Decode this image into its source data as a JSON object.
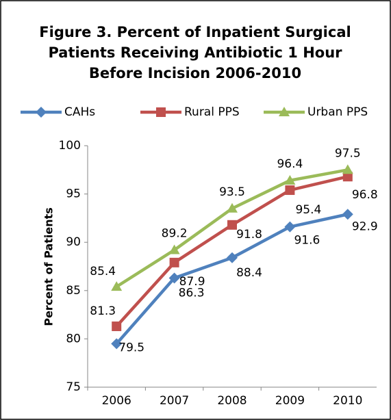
{
  "chart_data": {
    "type": "line",
    "title": [
      "Figure 3. Percent of Inpatient Surgical",
      "Patients Receiving Antibiotic 1 Hour",
      "Before Incision 2006-2010"
    ],
    "y_label": "Percent of Patients",
    "categories": [
      "2006",
      "2007",
      "2008",
      "2009",
      "2010"
    ],
    "series": [
      {
        "name": "CAHs",
        "color": "#4f81bd",
        "values": [
          79.5,
          86.3,
          88.4,
          91.6,
          92.9
        ]
      },
      {
        "name": "Rural PPS",
        "color": "#c0504d",
        "values": [
          81.3,
          87.9,
          91.8,
          95.4,
          96.8
        ]
      },
      {
        "name": "Urban PPS",
        "color": "#9bbb59",
        "values": [
          85.4,
          89.2,
          93.5,
          96.4,
          97.5
        ]
      }
    ],
    "ylim": [
      75,
      100
    ],
    "yticks": [
      75,
      80,
      85,
      90,
      95,
      100
    ],
    "grid": false,
    "legend": "top"
  }
}
